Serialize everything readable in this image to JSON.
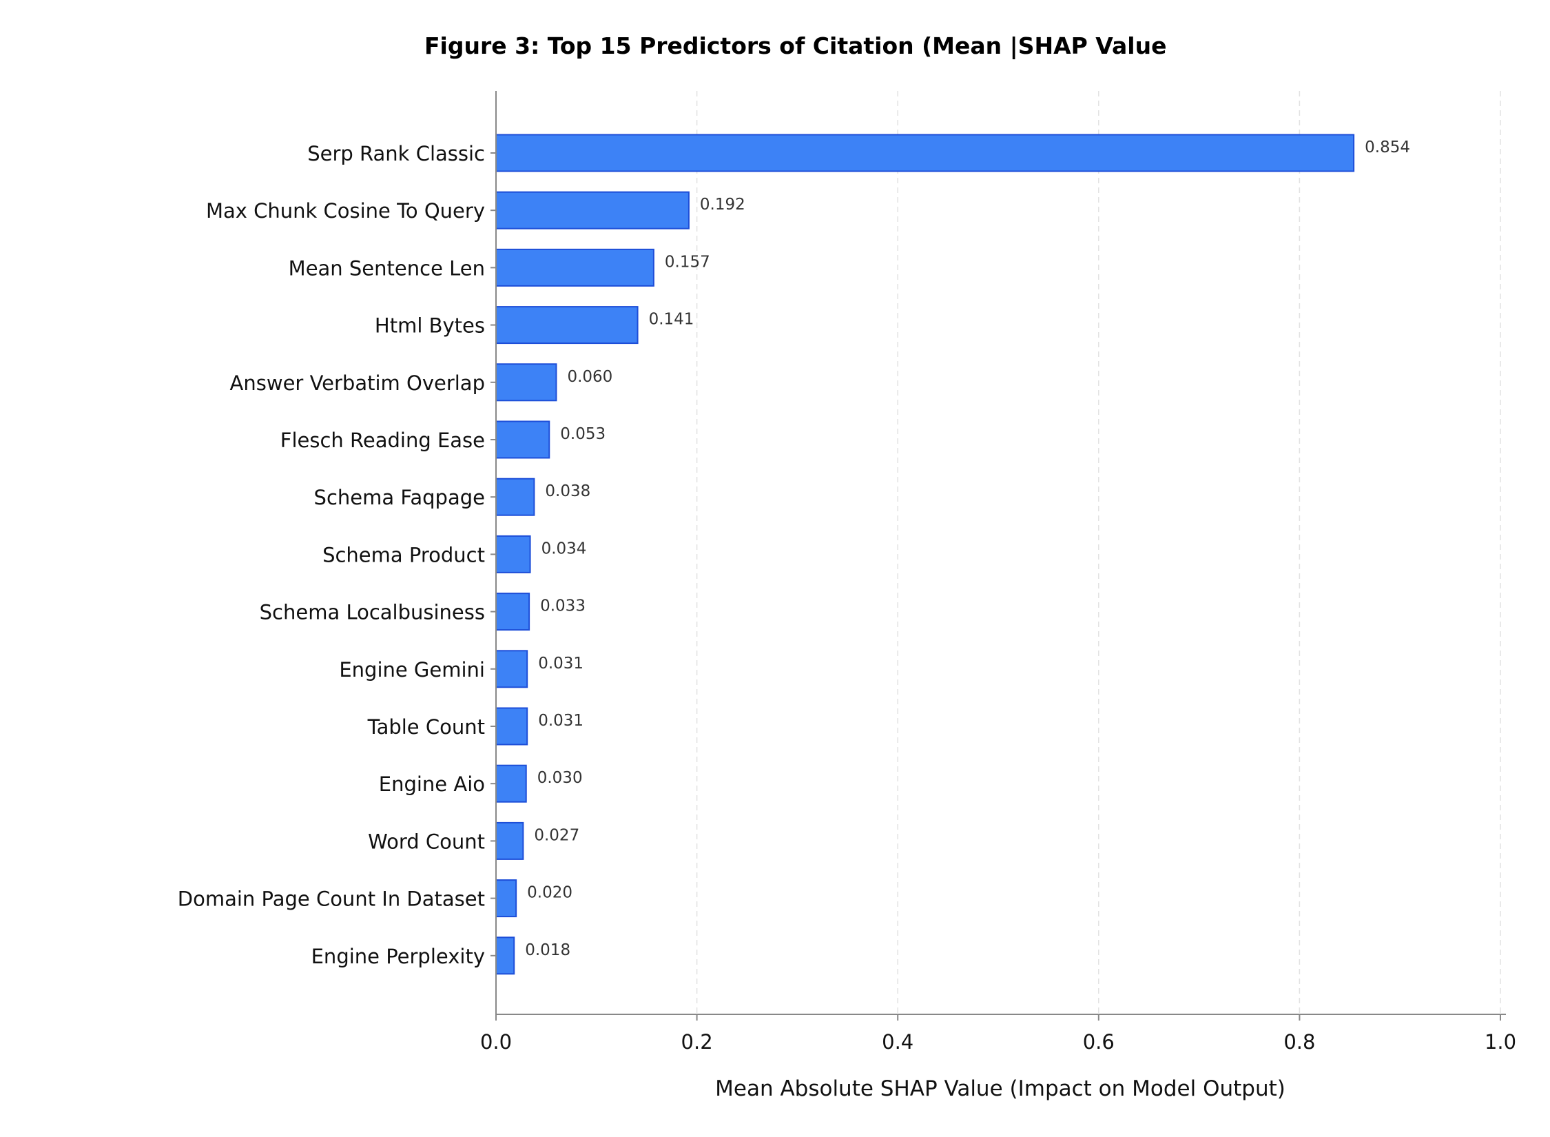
{
  "chart_data": {
    "type": "bar",
    "orientation": "horizontal",
    "title": "Figure 3: Top 15 Predictors of Citation (Mean |SHAP Value",
    "xlabel": "Mean Absolute SHAP Value (Impact on Model Output)",
    "ylabel": "",
    "xlim": [
      0,
      1.0
    ],
    "xticks": [
      "0.0",
      "0.2",
      "0.4",
      "0.6",
      "0.8",
      "1.0"
    ],
    "grid": "x-dashed",
    "categories": [
      "Serp Rank Classic",
      "Max Chunk Cosine To Query",
      "Mean Sentence Len",
      "Html Bytes",
      "Answer Verbatim Overlap",
      "Flesch Reading Ease",
      "Schema Faqpage",
      "Schema Product",
      "Schema Localbusiness",
      "Engine Gemini",
      "Table Count",
      "Engine Aio",
      "Word Count",
      "Domain Page Count In Dataset",
      "Engine Perplexity"
    ],
    "values": [
      0.854,
      0.192,
      0.157,
      0.141,
      0.06,
      0.053,
      0.038,
      0.034,
      0.033,
      0.031,
      0.031,
      0.03,
      0.027,
      0.02,
      0.018
    ],
    "value_labels": [
      "0.854",
      "0.192",
      "0.157",
      "0.141",
      "0.060",
      "0.053",
      "0.038",
      "0.034",
      "0.033",
      "0.031",
      "0.031",
      "0.030",
      "0.027",
      "0.020",
      "0.018"
    ],
    "colors": {
      "bar_fill": "#3d82f6",
      "bar_edge": "#1d4ed8"
    }
  }
}
